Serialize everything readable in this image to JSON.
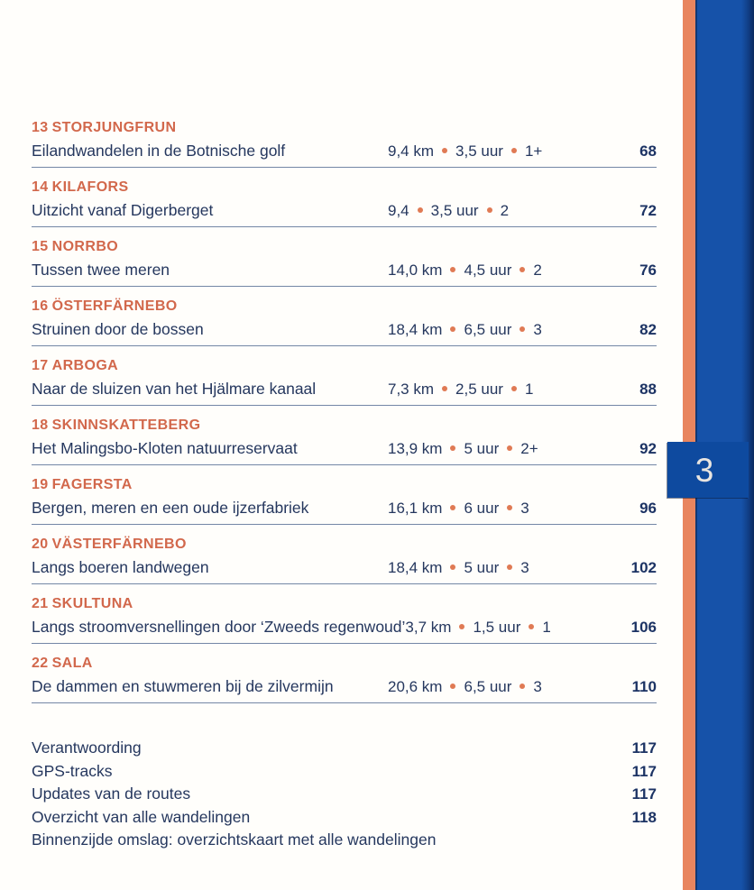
{
  "page": {
    "chapter_tab": {
      "label": "3"
    },
    "colors": {
      "accent_orange": "#d2684c",
      "bullet_orange": "#e07a54",
      "text_navy": "#25375e",
      "band_blue": "#1652a9",
      "stripe_orange": "#e8855f",
      "tab_blue": "#0e4a9f"
    },
    "toc": {
      "entries": [
        {
          "number": "13",
          "title": "STORJUNGFRUN",
          "description": "Eilandwandelen in de Botnische golf",
          "distance": "9,4 km",
          "duration": "3,5 uur",
          "difficulty": "1+",
          "page": "68"
        },
        {
          "number": "14",
          "title": "KILAFORS",
          "description": "Uitzicht vanaf Digerberget",
          "distance": "9,4",
          "duration": "3,5 uur",
          "difficulty": "2",
          "page": "72"
        },
        {
          "number": "15",
          "title": "NORRBO",
          "description": "Tussen twee meren",
          "distance": "14,0 km",
          "duration": "4,5 uur",
          "difficulty": "2",
          "page": "76"
        },
        {
          "number": "16",
          "title": "ÖSTERFÄRNEBO",
          "description": "Struinen door de bossen",
          "distance": "18,4 km",
          "duration": "6,5 uur",
          "difficulty": "3",
          "page": "82"
        },
        {
          "number": "17",
          "title": "ARBOGA",
          "description": "Naar de sluizen van het Hjälmare kanaal",
          "distance": "7,3 km",
          "duration": "2,5 uur",
          "difficulty": "1",
          "page": "88"
        },
        {
          "number": "18",
          "title": "SKINNSKATTEBERG",
          "description": "Het Malingsbo-Kloten natuurreservaat",
          "distance": "13,9 km",
          "duration": "5 uur",
          "difficulty": "2+",
          "page": "92"
        },
        {
          "number": "19",
          "title": "FAGERSTA",
          "description": "Bergen, meren en een oude ijzerfabriek",
          "distance": "16,1 km",
          "duration": "6 uur",
          "difficulty": "3",
          "page": "96"
        },
        {
          "number": "20",
          "title": "VÄSTERFÄRNEBO",
          "description": "Langs boeren landwegen",
          "distance": "18,4 km",
          "duration": "5 uur",
          "difficulty": "3",
          "page": "102"
        },
        {
          "number": "21",
          "title": "SKULTUNA",
          "description": "Langs stroomversnellingen door ‘Zweeds regenwoud’",
          "distance": "3,7 km",
          "duration": "1,5 uur",
          "difficulty": "1",
          "page": "106"
        },
        {
          "number": "22",
          "title": "SALA",
          "description": "De dammen en stuwmeren bij de zilvermijn",
          "distance": "20,6 km",
          "duration": "6,5 uur",
          "difficulty": "3",
          "page": "110"
        }
      ],
      "extras": [
        {
          "label": "Verantwoording",
          "page": "117"
        },
        {
          "label": "GPS-tracks",
          "page": "117"
        },
        {
          "label": "Updates van de routes",
          "page": "117"
        },
        {
          "label": "Overzicht van alle wandelingen",
          "page": "118"
        },
        {
          "label": "Binnenzijde omslag: overzichtskaart met alle wandelingen",
          "page": ""
        }
      ]
    }
  }
}
